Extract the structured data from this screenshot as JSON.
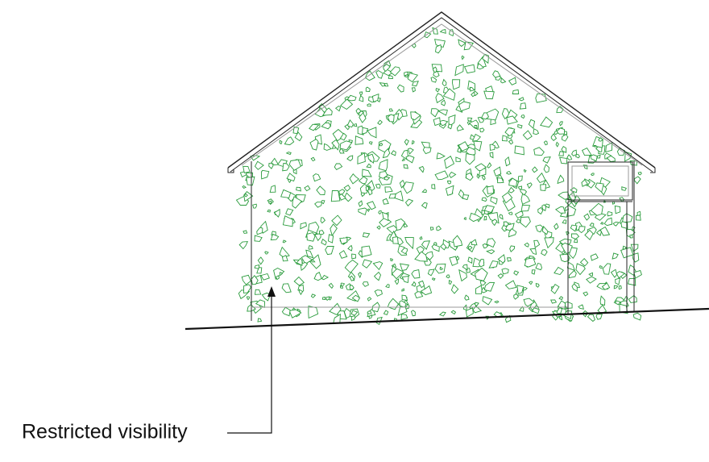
{
  "annotation": {
    "label": "Restricted visibility"
  }
}
